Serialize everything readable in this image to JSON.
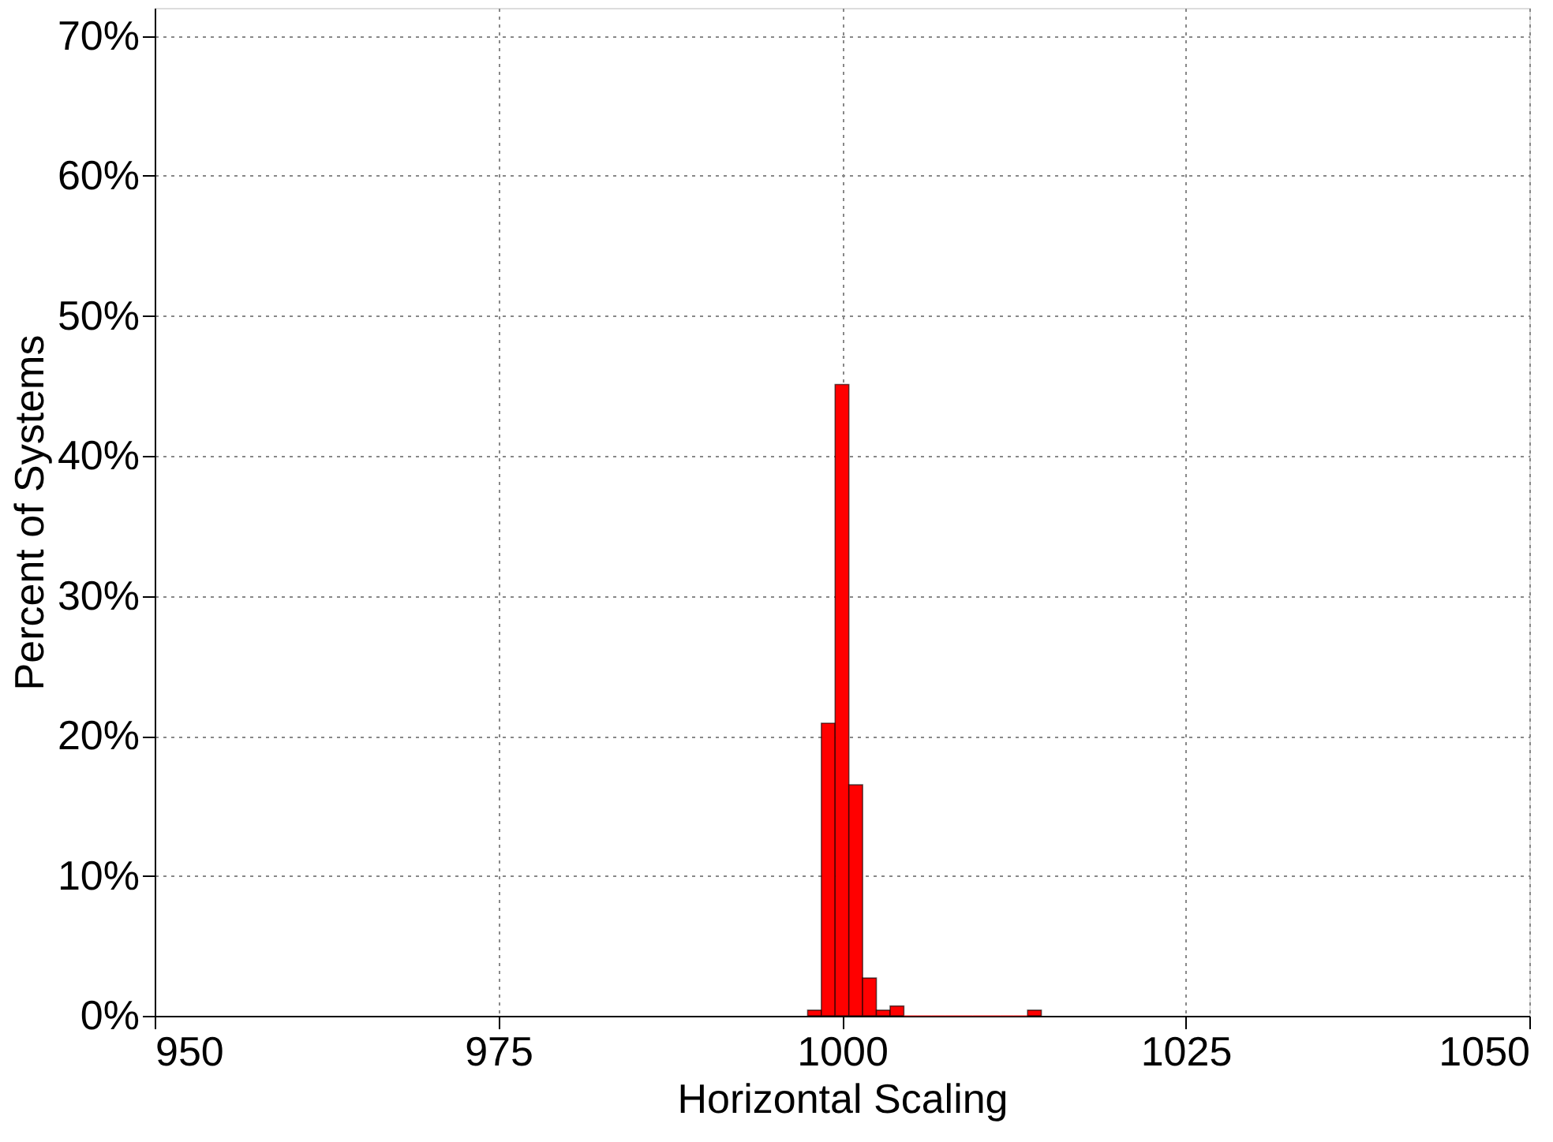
{
  "chart_data": {
    "type": "histogram",
    "xlabel": "Horizontal Scaling",
    "ylabel": "Percent of Systems",
    "bins": [
      997.5,
      998.5,
      999.5,
      1000.5,
      1001.5,
      1002.5,
      1003.5,
      1004.5,
      1005.5,
      1006.5,
      1007.5,
      1008.5,
      1009.5,
      1010.5,
      1011.5,
      1012.5,
      1013.5,
      1014.5
    ],
    "values": [
      0.4,
      20.9,
      45.1,
      16.5,
      2.7,
      0.4,
      0.7,
      0,
      0,
      0,
      0,
      0,
      0,
      0,
      0,
      0,
      0.4
    ],
    "color": "#ff0000",
    "xlim": [
      950,
      1050
    ],
    "xticks": [
      950,
      975,
      1000,
      1025,
      1050
    ],
    "ylim": [
      0,
      72
    ],
    "yticks": [
      {
        "value": 0,
        "label": "0%"
      },
      {
        "value": 10,
        "label": "10%"
      },
      {
        "value": 20,
        "label": "20%"
      },
      {
        "value": 30,
        "label": "30%"
      },
      {
        "value": 40,
        "label": "40%"
      },
      {
        "value": 50,
        "label": "50%"
      },
      {
        "value": 60,
        "label": "60%"
      },
      {
        "value": 70,
        "label": "70%"
      }
    ],
    "grid": true
  }
}
